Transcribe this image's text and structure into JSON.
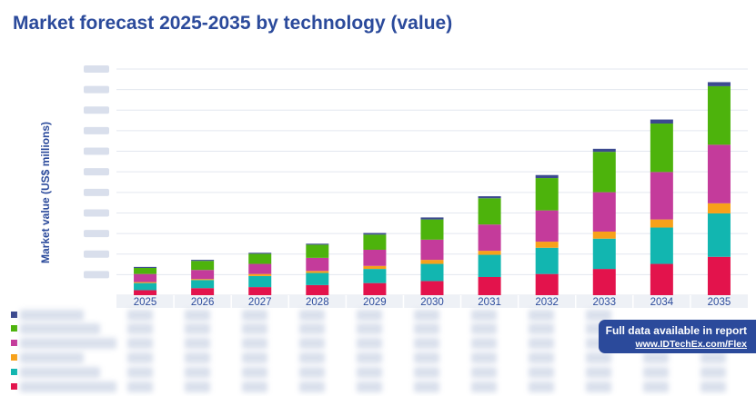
{
  "title": "Market forecast 2025-2035 by technology (value)",
  "promo": {
    "line1": "Full data available in report",
    "line2": "www.IDTechEx.com/Flex"
  },
  "legend_colors": [
    "#3c4a8f",
    "#4db30c",
    "#c43b9b",
    "#f7a11a",
    "#12b6b0",
    "#e3134c"
  ],
  "chart_data": {
    "type": "bar",
    "stacked": true,
    "title": "Market forecast 2025-2035 by technology (value)",
    "ylabel": "Market value (US$ millions)",
    "xlabel": "",
    "ylim": [
      0,
      112
    ],
    "grid": true,
    "categories": [
      "2025",
      "2026",
      "2027",
      "2028",
      "2029",
      "2030",
      "2031",
      "2032",
      "2033",
      "2034",
      "2035"
    ],
    "series": [
      {
        "name": "",
        "color": "#e3134c",
        "values": [
          2.5,
          3.5,
          4,
          5,
          6,
          7,
          9,
          10.5,
          13,
          15.5,
          19
        ]
      },
      {
        "name": "",
        "color": "#12b6b0",
        "values": [
          3.5,
          4,
          5.5,
          6,
          7,
          8.5,
          11,
          13,
          15,
          18,
          21.5
        ]
      },
      {
        "name": "",
        "color": "#f7a11a",
        "values": [
          0.5,
          0.5,
          1,
          1,
          1.5,
          2,
          2,
          3,
          3.5,
          4,
          5
        ]
      },
      {
        "name": "",
        "color": "#c43b9b",
        "values": [
          4,
          4.5,
          5,
          6.5,
          8,
          10,
          13,
          15.5,
          19.5,
          23.5,
          29
        ]
      },
      {
        "name": "",
        "color": "#4db30c",
        "values": [
          3,
          4.5,
          5,
          6.5,
          7.5,
          10,
          13,
          16,
          20,
          24,
          29
        ]
      },
      {
        "name": "",
        "color": "#3c4a8f",
        "values": [
          0.5,
          0.5,
          0.5,
          0.5,
          0.8,
          1,
          1,
          1.5,
          1.5,
          2,
          2
        ]
      }
    ]
  }
}
